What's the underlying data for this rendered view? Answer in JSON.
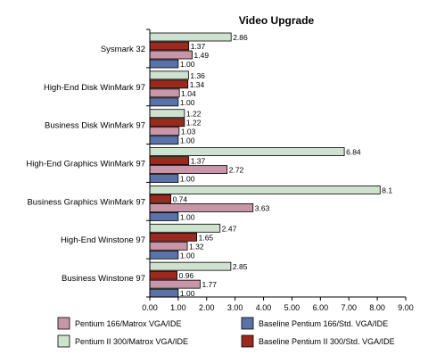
{
  "chart_data": {
    "type": "bar",
    "orientation": "horizontal",
    "title": "Video Upgrade",
    "categories": [
      "Sysmark 32",
      "High-End Disk WinMark 97",
      "Business Disk WinMark 97",
      "High-End Graphics WinMark 97",
      "Business Graphics WinMark 97",
      "High-End Winstone 97",
      "Business Winstone 97"
    ],
    "series": [
      {
        "name": "Pentium II 300/Matrox VGA/IDE",
        "color": "#cfe2cf",
        "values": [
          2.86,
          1.36,
          1.22,
          6.84,
          8.1,
          2.47,
          2.85
        ],
        "labels": [
          "2.86",
          "1.36",
          "1.22",
          "6.84",
          "8.1",
          "2.47",
          "2.85"
        ]
      },
      {
        "name": "Baseline Pentium II 300/Std. VGA/IDE",
        "color": "#9b2a1e",
        "values": [
          1.37,
          1.34,
          1.22,
          1.37,
          0.74,
          1.65,
          0.96
        ],
        "labels": [
          "1.37",
          "1.34",
          "1.22",
          "1.37",
          "0.74",
          "1.65",
          "0.96"
        ]
      },
      {
        "name": "Pentium 166/Matrox VGA/IDE",
        "color": "#c896a8",
        "values": [
          1.49,
          1.04,
          1.03,
          2.72,
          3.63,
          1.32,
          1.77
        ],
        "labels": [
          "1.49",
          "1.04",
          "1.03",
          "2.72",
          "3.63",
          "1.32",
          "1.77"
        ]
      },
      {
        "name": "Baseline Pentium 166/Std. VGA/IDE",
        "color": "#5a72a8",
        "values": [
          1.0,
          1.0,
          1.0,
          1.0,
          1.0,
          1.0,
          1.0
        ],
        "labels": [
          "1.00",
          "1.00",
          "1.00",
          "1.00",
          "1.00",
          "1.00",
          "1.00"
        ]
      }
    ],
    "xlim": [
      0,
      9
    ],
    "ticks": [
      "0.00",
      "1.00",
      "2.00",
      "3.00",
      "4.00",
      "5.00",
      "6.00",
      "7.00",
      "8.00",
      "9.00"
    ],
    "grid": false,
    "legend_position": "bottom",
    "legend_order": [
      "Pentium 166/Matrox VGA/IDE",
      "Baseline Pentium 166/Std. VGA/IDE",
      "Pentium II 300/Matrox VGA/IDE",
      "Baseline Pentium II 300/Std. VGA/IDE"
    ]
  }
}
